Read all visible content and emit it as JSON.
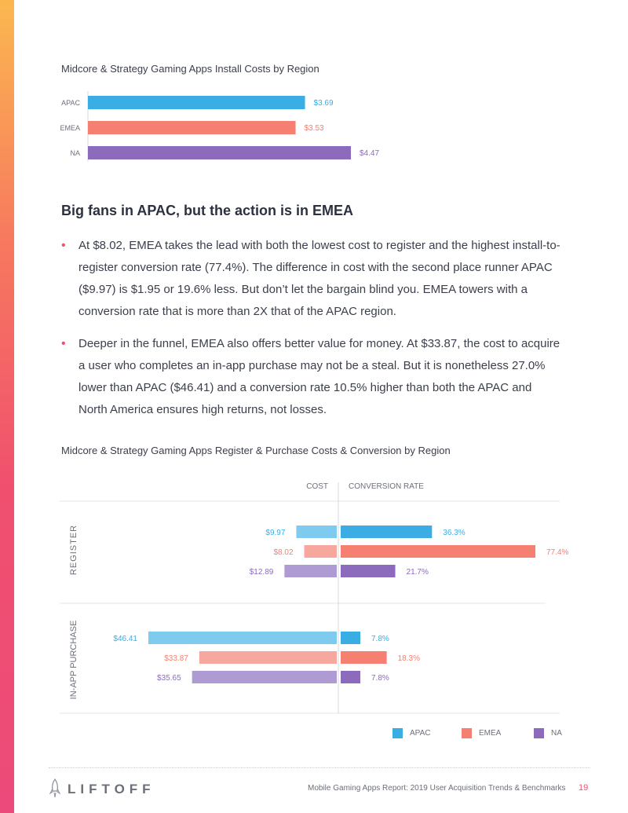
{
  "chart_data": [
    {
      "type": "bar",
      "title": "Midcore & Strategy Gaming Apps Install Costs by Region",
      "categories": [
        "APAC",
        "EMEA",
        "NA"
      ],
      "values": [
        3.69,
        3.53,
        4.47
      ],
      "value_labels": [
        "$3.69",
        "$3.53",
        "$4.47"
      ],
      "colors": [
        "#3aade4",
        "#f58072",
        "#8c6bbd"
      ],
      "xlim": [
        0,
        4.6
      ]
    },
    {
      "type": "bar",
      "title": "Midcore & Strategy Gaming Apps Register & Purchase Costs & Conversion by Region",
      "column_headers": {
        "cost": "COST",
        "conversion": "CONVERSION RATE"
      },
      "groups": [
        {
          "label": "REGISTER",
          "cost": [
            9.97,
            8.02,
            12.89
          ],
          "cost_labels": [
            "$9.97",
            "$8.02",
            "$12.89"
          ],
          "conversion": [
            36.3,
            77.4,
            21.7
          ],
          "conversion_labels": [
            "36.3%",
            "77.4%",
            "21.7%"
          ]
        },
        {
          "label": "IN-APP PURCHASE",
          "cost": [
            46.41,
            33.87,
            35.65
          ],
          "cost_labels": [
            "$46.41",
            "$33.87",
            "$35.65"
          ],
          "conversion": [
            7.8,
            18.3,
            7.8
          ],
          "conversion_labels": [
            "7.8%",
            "18.3%",
            "7.8%"
          ]
        }
      ],
      "series": [
        {
          "name": "APAC",
          "cost_color": "#7fcaef",
          "conv_color": "#3aade4",
          "text_color": "#3aade4"
        },
        {
          "name": "EMEA",
          "cost_color": "#f6a89f",
          "conv_color": "#f58072",
          "text_color": "#f58072"
        },
        {
          "name": "NA",
          "cost_color": "#af9bd3",
          "conv_color": "#8c6bbd",
          "text_color": "#8c6bbd"
        }
      ],
      "cost_max": 50,
      "conversion_max": 80
    }
  ],
  "section": {
    "heading": "Big fans in APAC, but the action is in EMEA",
    "bullets": [
      "At $8.02, EMEA takes the lead with both the lowest cost to register and the highest install-to-register conversion rate (77.4%). The difference in cost with the second place runner APAC ($9.97) is $1.95 or 19.6% less. But don’t let the bargain blind you. EMEA towers with a conversion rate that is more than 2X that of the APAC region.",
      "Deeper in the funnel, EMEA also offers better value for money. At $33.87, the cost to acquire a user who completes an in-app purchase may not be a steal. But it is nonetheless 27.0% lower than APAC ($46.41) and a conversion rate 10.5% higher than both the APAC and North America ensures high returns, not losses."
    ]
  },
  "footer": {
    "logo": "LIFTOFF",
    "report_title": "Mobile Gaming Apps Report: 2019 User Acquisition Trends & Benchmarks",
    "page_number": "19"
  }
}
